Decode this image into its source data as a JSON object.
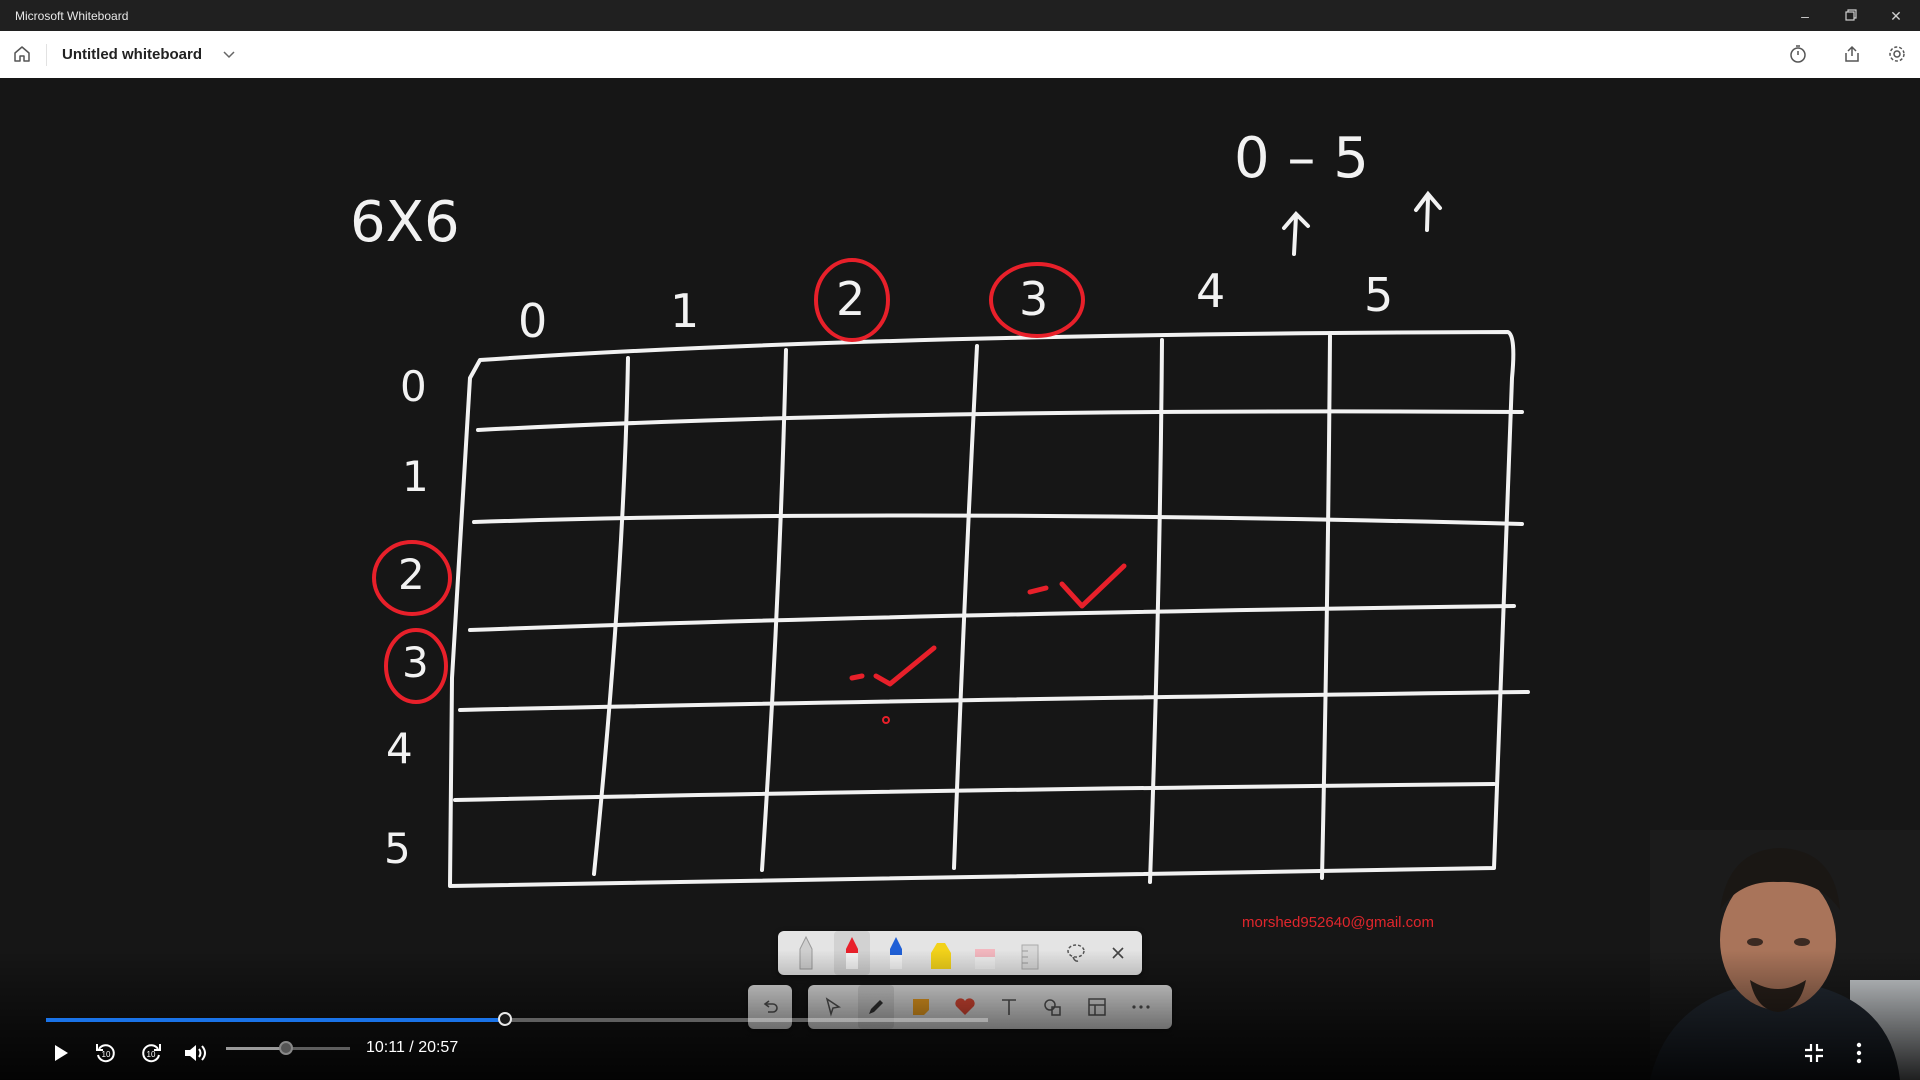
{
  "window": {
    "title": "Microsoft Whiteboard"
  },
  "appbar": {
    "document_title": "Untitled whiteboard"
  },
  "board": {
    "grid_label": "6X6",
    "range_label": "0 – 5",
    "column_labels": [
      "0",
      "1",
      "2",
      "3",
      "4",
      "5"
    ],
    "row_labels": [
      "0",
      "1",
      "2",
      "3",
      "4",
      "5"
    ],
    "circled_columns": [
      "2",
      "3"
    ],
    "circled_rows": [
      "2",
      "3"
    ],
    "ink_colors": {
      "white": "#f2f2f2",
      "red": "#e8202a"
    }
  },
  "watermark_email": "morshed952640@gmail.com",
  "ink_toolbar": {
    "tools": [
      "pencil",
      "red-pen",
      "blue-pen",
      "yellow-highlighter",
      "pink-highlighter",
      "ruler",
      "lasso",
      "close"
    ]
  },
  "main_toolbar": {
    "tools": [
      "undo",
      "select",
      "pen",
      "sticky-note",
      "reaction",
      "text",
      "shapes",
      "templates",
      "more"
    ]
  },
  "player": {
    "time_display": "10:11 / 20:57",
    "progress": 0.487,
    "volume": 0.48,
    "accent": "#1a73e8"
  }
}
